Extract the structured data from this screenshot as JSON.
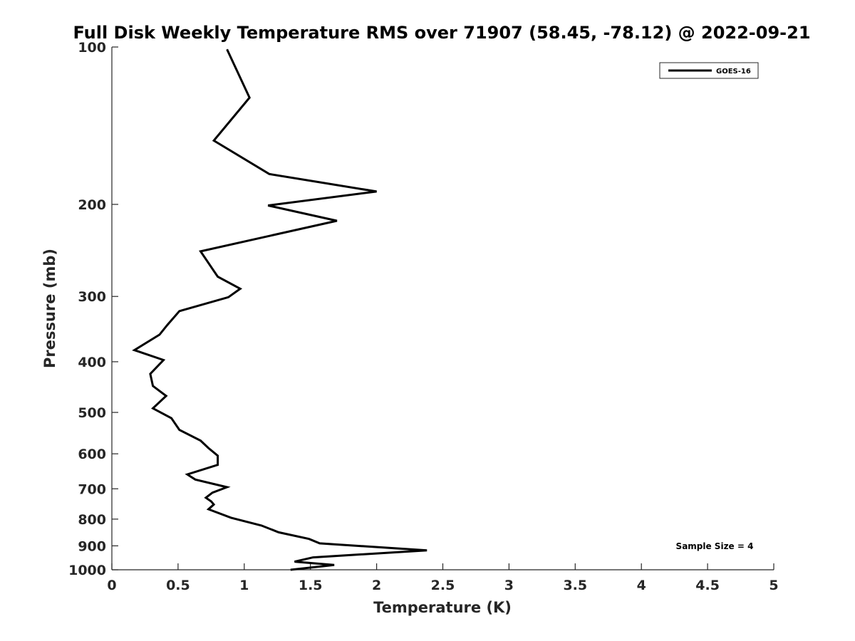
{
  "chart_data": {
    "type": "line",
    "title": "Full Disk Weekly Temperature RMS over 71907 (58.45, -78.12) @ 2022-09-21",
    "xlabel": "Temperature (K)",
    "ylabel": "Pressure (mb)",
    "xlim": [
      0,
      5
    ],
    "ylim": [
      1000,
      100
    ],
    "y_scale": "log",
    "y_reversed": true,
    "x_ticks": [
      0,
      0.5,
      1,
      1.5,
      2,
      2.5,
      3,
      3.5,
      4,
      4.5,
      5
    ],
    "x_tick_labels": [
      "0",
      "0.5",
      "1",
      "1.5",
      "2",
      "2.5",
      "3",
      "3.5",
      "4",
      "4.5",
      "5"
    ],
    "y_ticks": [
      100,
      200,
      300,
      400,
      500,
      600,
      700,
      800,
      900,
      1000
    ],
    "y_tick_labels": [
      "100",
      "200",
      "300",
      "400",
      "500",
      "600",
      "700",
      "800",
      "900",
      "1000"
    ],
    "grid": false,
    "legend_position": "top-right",
    "series": [
      {
        "name": "GOES-16",
        "color": "#000000",
        "x": [
          0.87,
          1.04,
          0.77,
          1.19,
          2.0,
          1.18,
          1.7,
          0.67,
          0.8,
          0.97,
          0.88,
          0.51,
          0.42,
          0.36,
          0.17,
          0.39,
          0.29,
          0.31,
          0.41,
          0.31,
          0.45,
          0.51,
          0.67,
          0.73,
          0.8,
          0.8,
          0.57,
          0.63,
          0.87,
          0.76,
          0.71,
          0.75,
          0.77,
          0.73,
          0.9,
          1.13,
          1.26,
          1.49,
          1.57,
          2.38,
          1.52,
          1.38,
          1.68,
          1.35
        ],
        "y": [
          101,
          125,
          151,
          175,
          189,
          201,
          215,
          246,
          275,
          290,
          301,
          320,
          340,
          355,
          380,
          397,
          422,
          445,
          465,
          491,
          513,
          540,
          566,
          585,
          605,
          630,
          657,
          672,
          695,
          712,
          728,
          740,
          750,
          766,
          795,
          823,
          848,
          873,
          890,
          918,
          947,
          965,
          979,
          1000
        ]
      }
    ],
    "annotations": [
      "Sample Size = 4"
    ]
  }
}
